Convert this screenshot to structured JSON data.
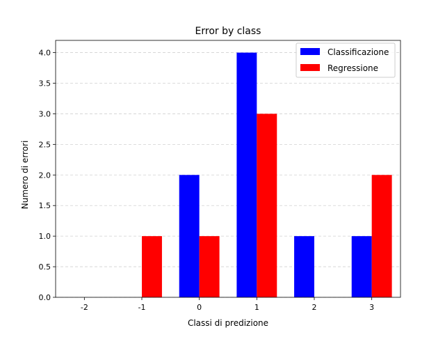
{
  "chart_data": {
    "type": "bar",
    "title": "Error by class",
    "xlabel": "Classi di predizione",
    "ylabel": "Numero di errori",
    "categories": [
      "-2",
      "-1",
      "0",
      "1",
      "2",
      "3"
    ],
    "series": [
      {
        "name": "Classificazione",
        "color": "#0000ff",
        "values": [
          0,
          0,
          2,
          4,
          1,
          1
        ]
      },
      {
        "name": "Regressione",
        "color": "#ff0000",
        "values": [
          0,
          1,
          1,
          3,
          0,
          2
        ]
      }
    ],
    "ylim": [
      0,
      4.2
    ],
    "yticks": [
      "0.0",
      "0.5",
      "1.0",
      "1.5",
      "2.0",
      "2.5",
      "3.0",
      "3.5",
      "4.0"
    ],
    "grid": "y-dashed",
    "legend_position": "top-right"
  }
}
